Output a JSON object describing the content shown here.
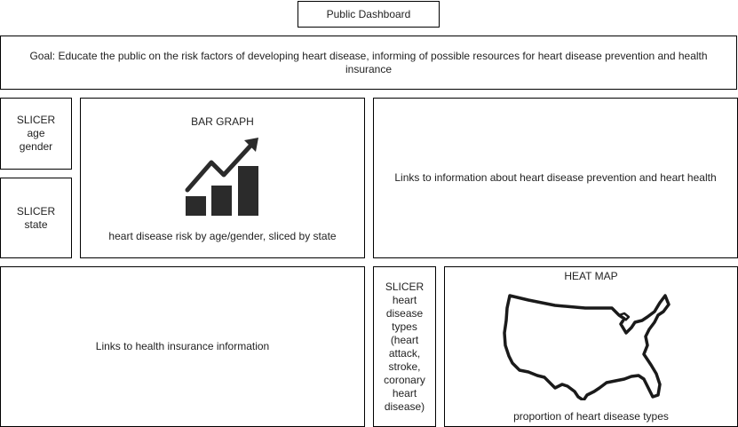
{
  "header": {
    "title": "Public Dashboard"
  },
  "goal": {
    "text": "Goal: Educate the public on the risk factors of developing heart disease, informing of possible resources for heart disease prevention and health insurance"
  },
  "slicer_age_gender": {
    "lines": [
      "SLICER",
      "age",
      "gender"
    ]
  },
  "slicer_state": {
    "lines": [
      "SLICER",
      "state"
    ]
  },
  "bar_graph": {
    "title": "BAR GRAPH",
    "caption": "heart disease risk by age/gender, sliced by state",
    "icon": "bar-chart-growth-icon"
  },
  "prevention_links": {
    "text": "Links to information about heart disease prevention and heart health"
  },
  "insurance_links": {
    "text": "Links to health insurance information"
  },
  "slicer_heart_disease_types": {
    "lines": [
      "SLICER",
      "heart",
      "disease",
      "types",
      "(heart",
      "attack,",
      "stroke,",
      "coronary",
      "heart",
      "disease)"
    ]
  },
  "heat_map": {
    "title": "HEAT MAP",
    "caption": "proportion of heart disease types",
    "icon": "us-map-icon"
  }
}
